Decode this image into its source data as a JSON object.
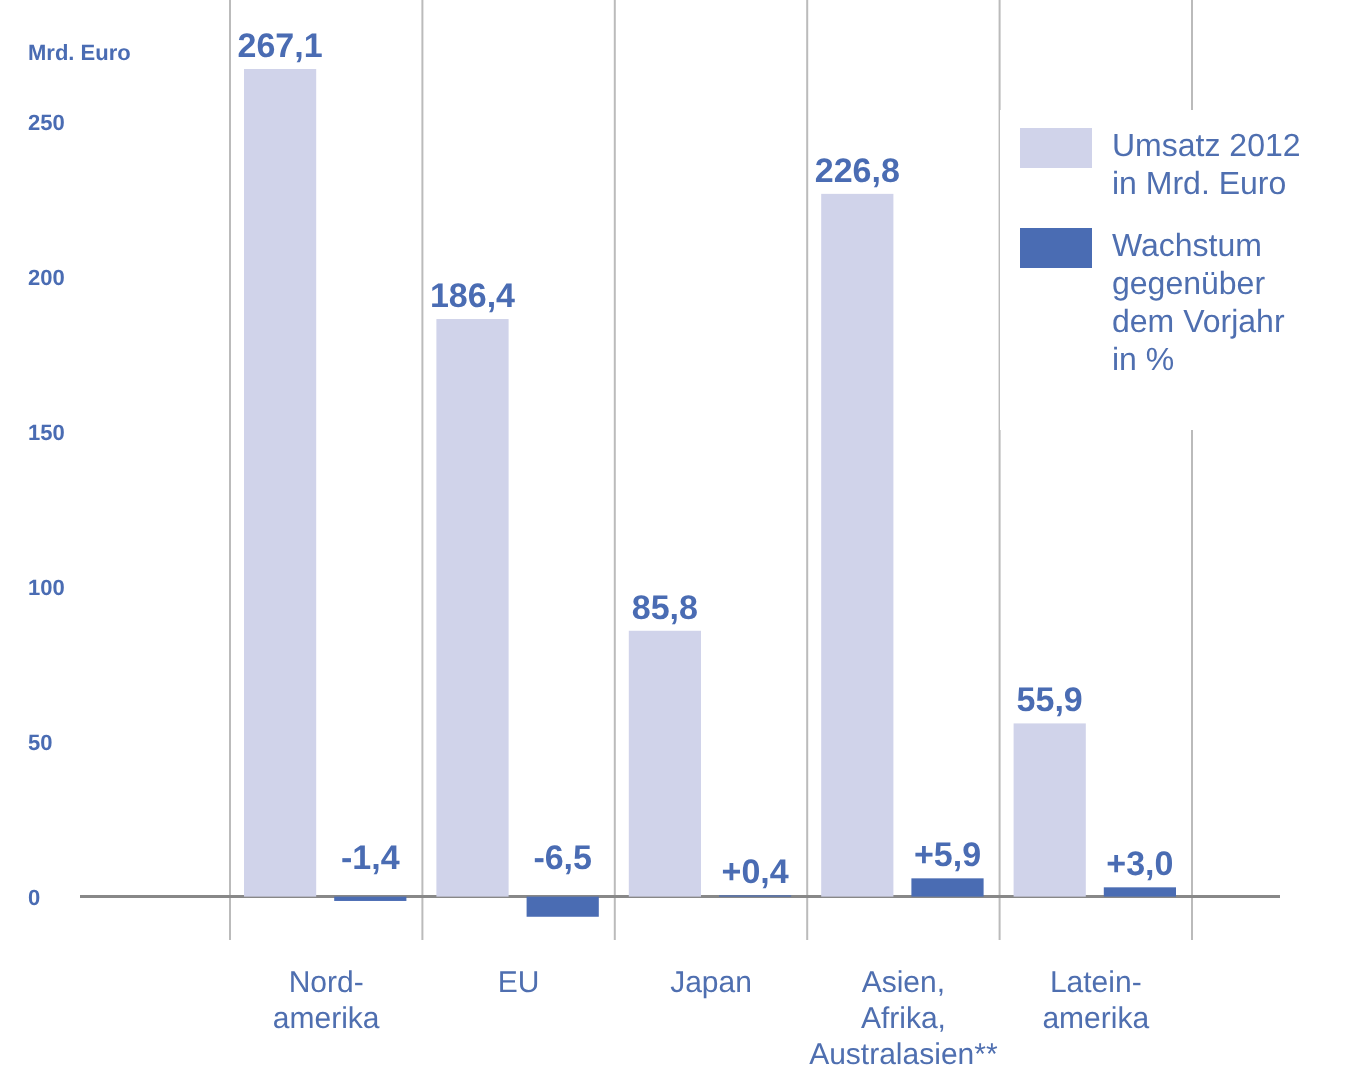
{
  "chart_data": {
    "type": "bar",
    "ylabel": "Mrd. Euro",
    "categories": [
      "Nord-\namerika",
      "EU",
      "Japan",
      "Asien,\nAfrika,\nAustralasien**",
      "Latein-\namerika"
    ],
    "series": [
      {
        "name": "Umsatz 2012\nin Mrd. Euro",
        "color": "#d0d3ea",
        "values": [
          267.1,
          186.4,
          85.8,
          226.8,
          55.9
        ],
        "value_labels": [
          "267,1",
          "186,4",
          "85,8",
          "226,8",
          "55,9"
        ]
      },
      {
        "name": "Wachstum\ngegenüber\ndem Vorjahr\nin %",
        "color": "#4a6cb3",
        "values": [
          -1.4,
          -6.5,
          0.4,
          5.9,
          3.0
        ],
        "value_labels": [
          "-1,4",
          "-6,5",
          "+0,4",
          "+5,9",
          "+3,0"
        ]
      }
    ],
    "ylim": [
      -14,
      270
    ],
    "yticks": [
      0,
      50,
      100,
      150,
      200,
      250
    ],
    "grid": "x",
    "legend": "top right",
    "data_labels": true
  }
}
